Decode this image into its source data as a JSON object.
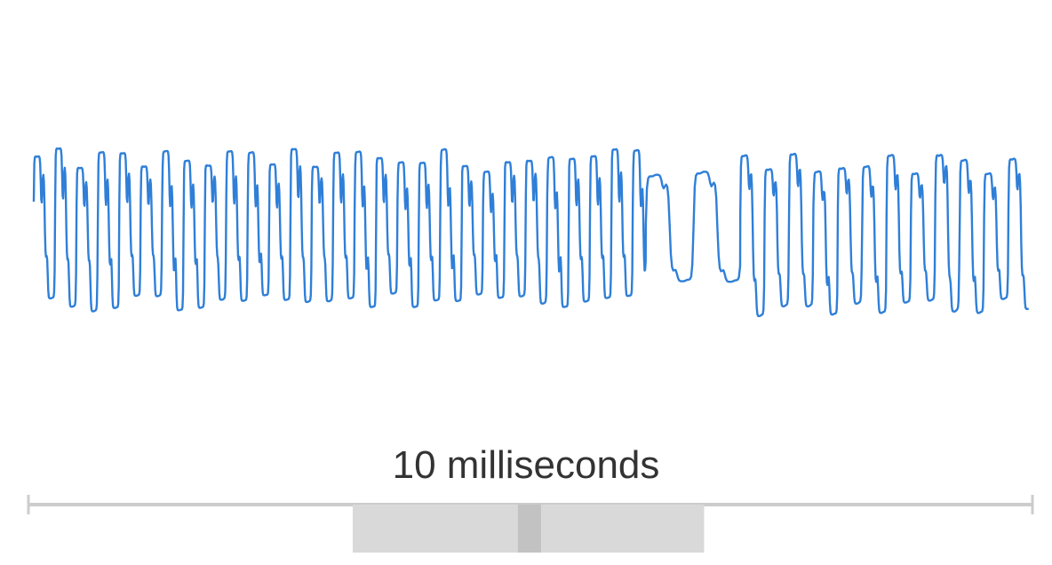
{
  "chart_data": {
    "type": "line",
    "title": "",
    "xlabel": "",
    "ylabel": "",
    "x_unit": "milliseconds",
    "xlim": [
      0,
      10
    ],
    "ylim": [
      -1,
      1
    ],
    "grid": false,
    "legend": "none",
    "scale_bar": {
      "label": "10 milliseconds",
      "length_ms": 10
    },
    "selection_window": {
      "start_ms": 3.23,
      "end_ms": 6.73,
      "playhead_ms": 4.99
    },
    "series": [
      {
        "color": "#2f7fd8",
        "segments": [
          {
            "x_start": 0.0,
            "x_end": 6.15,
            "cycle_ms": 0.215,
            "high": 0.72,
            "low": -0.68,
            "harmonic": 0.45
          },
          {
            "x_start": 6.15,
            "x_end": 7.1,
            "cycle_ms": 0.48,
            "high": 0.55,
            "low": -0.45,
            "harmonic": 0.2
          },
          {
            "x_start": 7.1,
            "x_end": 10.0,
            "cycle_ms": 0.245,
            "high": 0.7,
            "low": -0.7,
            "harmonic": 0.35
          }
        ]
      }
    ],
    "colors": {
      "waveform": "#2f7fd8",
      "scale_bar": "#cccccc",
      "selection": "#d9d9d9",
      "playhead": "#c2c2c2",
      "text": "#333333"
    }
  }
}
